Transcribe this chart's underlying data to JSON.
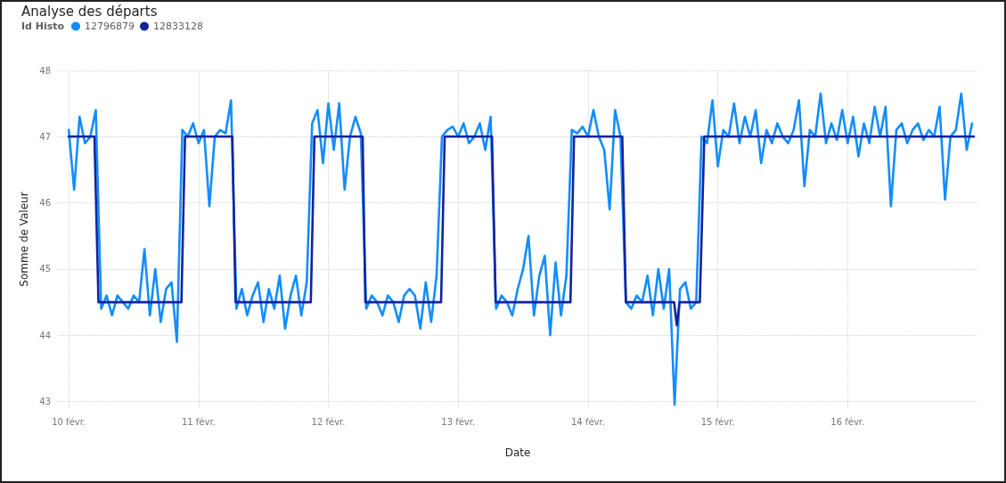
{
  "chart_data": {
    "type": "line",
    "title": "Analyse des départs",
    "legend_title": "Id Histo",
    "xlabel": "Date",
    "ylabel": "Somme de Valeur",
    "xlim": [
      "--02-09T22:00",
      "--02-17T00:00"
    ],
    "xticks": [
      {
        "value": "--02-10",
        "label": "10 févr."
      },
      {
        "value": "--02-11",
        "label": "11 févr."
      },
      {
        "value": "--02-12",
        "label": "12 févr."
      },
      {
        "value": "--02-13",
        "label": "13 févr."
      },
      {
        "value": "--02-14",
        "label": "14 févr."
      },
      {
        "value": "--02-15",
        "label": "15 févr."
      },
      {
        "value": "--02-16",
        "label": "16 févr."
      }
    ],
    "ylim": [
      42.9,
      48
    ],
    "yticks": [
      43,
      44,
      45,
      46,
      47,
      48
    ],
    "grid": true,
    "legend": "top left",
    "marker": "none",
    "line_style": "solid",
    "series": [
      {
        "name": "12796879",
        "color": "#118dff",
        "x": [
          "--02-10T00:00",
          "--02-10T01:00",
          "--02-10T02:00",
          "--02-10T03:00",
          "--02-10T04:00",
          "--02-10T05:00",
          "--02-10T06:00",
          "--02-10T07:00",
          "--02-10T08:00",
          "--02-10T09:00",
          "--02-10T10:00",
          "--02-10T11:00",
          "--02-10T12:00",
          "--02-10T13:00",
          "--02-10T14:00",
          "--02-10T15:00",
          "--02-10T16:00",
          "--02-10T17:00",
          "--02-10T18:00",
          "--02-10T19:00",
          "--02-10T20:00",
          "--02-10T21:00",
          "--02-10T22:00",
          "--02-10T23:00",
          "--02-11T00:00",
          "--02-11T01:00",
          "--02-11T02:00",
          "--02-11T03:00",
          "--02-11T04:00",
          "--02-11T05:00",
          "--02-11T06:00",
          "--02-11T07:00",
          "--02-11T08:00",
          "--02-11T09:00",
          "--02-11T10:00",
          "--02-11T11:00",
          "--02-11T12:00",
          "--02-11T13:00",
          "--02-11T14:00",
          "--02-11T15:00",
          "--02-11T16:00",
          "--02-11T17:00",
          "--02-11T18:00",
          "--02-11T19:00",
          "--02-11T20:00",
          "--02-11T21:00",
          "--02-11T22:00",
          "--02-11T23:00",
          "--02-12T00:00",
          "--02-12T01:00",
          "--02-12T02:00",
          "--02-12T03:00",
          "--02-12T04:00",
          "--02-12T05:00",
          "--02-12T06:00",
          "--02-12T07:00",
          "--02-12T08:00",
          "--02-12T09:00",
          "--02-12T10:00",
          "--02-12T11:00",
          "--02-12T12:00",
          "--02-12T13:00",
          "--02-12T14:00",
          "--02-12T15:00",
          "--02-12T16:00",
          "--02-12T17:00",
          "--02-12T18:00",
          "--02-12T19:00",
          "--02-12T20:00",
          "--02-12T21:00",
          "--02-12T22:00",
          "--02-12T23:00",
          "--02-13T00:00",
          "--02-13T01:00",
          "--02-13T02:00",
          "--02-13T03:00",
          "--02-13T04:00",
          "--02-13T05:00",
          "--02-13T06:00",
          "--02-13T07:00",
          "--02-13T08:00",
          "--02-13T09:00",
          "--02-13T10:00",
          "--02-13T11:00",
          "--02-13T12:00",
          "--02-13T13:00",
          "--02-13T14:00",
          "--02-13T15:00",
          "--02-13T16:00",
          "--02-13T17:00",
          "--02-13T18:00",
          "--02-13T19:00",
          "--02-13T20:00",
          "--02-13T21:00",
          "--02-13T22:00",
          "--02-13T23:00",
          "--02-14T00:00",
          "--02-14T01:00",
          "--02-14T02:00",
          "--02-14T03:00",
          "--02-14T04:00",
          "--02-14T05:00",
          "--02-14T06:00",
          "--02-14T07:00",
          "--02-14T08:00",
          "--02-14T09:00",
          "--02-14T10:00",
          "--02-14T11:00",
          "--02-14T12:00",
          "--02-14T13:00",
          "--02-14T14:00",
          "--02-14T15:00",
          "--02-14T16:00",
          "--02-14T17:00",
          "--02-14T18:00",
          "--02-14T19:00",
          "--02-14T20:00",
          "--02-14T21:00",
          "--02-14T22:00",
          "--02-14T23:00",
          "--02-15T00:00",
          "--02-15T01:00",
          "--02-15T02:00",
          "--02-15T03:00",
          "--02-15T04:00",
          "--02-15T05:00",
          "--02-15T06:00",
          "--02-15T07:00",
          "--02-15T08:00",
          "--02-15T09:00",
          "--02-15T10:00",
          "--02-15T11:00",
          "--02-15T12:00",
          "--02-15T13:00",
          "--02-15T14:00",
          "--02-15T15:00",
          "--02-15T16:00",
          "--02-15T17:00",
          "--02-15T18:00",
          "--02-15T19:00",
          "--02-15T20:00",
          "--02-15T21:00",
          "--02-15T22:00",
          "--02-15T23:00",
          "--02-16T00:00",
          "--02-16T01:00",
          "--02-16T02:00",
          "--02-16T03:00",
          "--02-16T04:00",
          "--02-16T05:00",
          "--02-16T06:00",
          "--02-16T07:00",
          "--02-16T08:00",
          "--02-16T09:00",
          "--02-16T10:00",
          "--02-16T11:00",
          "--02-16T12:00",
          "--02-16T13:00",
          "--02-16T14:00",
          "--02-16T15:00",
          "--02-16T16:00",
          "--02-16T17:00",
          "--02-16T18:00",
          "--02-16T19:00",
          "--02-16T20:00",
          "--02-16T21:00",
          "--02-16T22:00",
          "--02-16T23:00"
        ],
        "values": [
          47.1,
          46.2,
          47.3,
          46.9,
          47.0,
          47.4,
          44.4,
          44.6,
          44.3,
          44.6,
          44.5,
          44.4,
          44.6,
          44.5,
          45.3,
          44.3,
          45.0,
          44.2,
          44.7,
          44.8,
          43.9,
          47.1,
          47.0,
          47.2,
          46.9,
          47.1,
          45.95,
          47.0,
          47.1,
          47.05,
          47.55,
          44.4,
          44.7,
          44.3,
          44.6,
          44.8,
          44.2,
          44.7,
          44.4,
          44.9,
          44.1,
          44.6,
          44.9,
          44.3,
          44.8,
          47.2,
          47.4,
          46.6,
          47.5,
          46.8,
          47.5,
          46.2,
          47.0,
          47.3,
          47.05,
          44.4,
          44.6,
          44.5,
          44.3,
          44.6,
          44.5,
          44.2,
          44.6,
          44.7,
          44.6,
          44.1,
          44.8,
          44.2,
          44.9,
          47.0,
          47.1,
          47.15,
          47.0,
          47.2,
          46.9,
          47.0,
          47.2,
          46.8,
          47.3,
          44.4,
          44.6,
          44.5,
          44.3,
          44.7,
          45.0,
          45.5,
          44.3,
          44.9,
          45.2,
          44.0,
          45.1,
          44.3,
          44.9,
          47.1,
          47.05,
          47.15,
          47.0,
          47.4,
          47.0,
          46.8,
          45.9,
          47.4,
          47.0,
          44.5,
          44.4,
          44.6,
          44.5,
          44.9,
          44.3,
          45.0,
          44.4,
          45.0,
          42.95,
          44.7,
          44.8,
          44.4,
          44.5,
          47.0,
          46.9,
          47.55,
          46.55,
          47.1,
          47.0,
          47.5,
          46.9,
          47.3,
          47.0,
          47.4,
          46.6,
          47.1,
          46.9,
          47.2,
          47.0,
          46.9,
          47.1,
          47.55,
          46.25,
          47.1,
          47.0,
          47.65,
          46.9,
          47.2,
          46.95,
          47.4,
          46.9,
          47.3,
          46.7,
          47.2,
          46.9,
          47.45,
          47.0,
          47.45,
          45.95,
          47.1,
          47.2,
          46.9,
          47.1,
          47.2,
          46.95,
          47.1,
          47.0,
          47.45,
          46.05,
          47.0,
          47.1,
          47.65,
          46.8,
          47.2
        ]
      },
      {
        "name": "12833128",
        "color": "#12239e",
        "x": [
          "--02-10T00:00",
          "--02-10T04:45",
          "--02-10T05:30",
          "--02-10T20:50",
          "--02-10T21:30",
          "--02-11T06:15",
          "--02-11T06:50",
          "--02-11T20:45",
          "--02-11T21:25",
          "--02-12T06:20",
          "--02-12T06:50",
          "--02-12T20:50",
          "--02-12T21:30",
          "--02-13T06:15",
          "--02-13T06:55",
          "--02-13T20:45",
          "--02-13T21:25",
          "--02-14T06:20",
          "--02-14T07:00",
          "--02-14T15:55",
          "--02-14T16:25",
          "--02-14T16:55",
          "--02-14T20:40",
          "--02-14T21:30",
          "--02-16T23:20"
        ],
        "values": [
          47,
          47,
          44.5,
          44.5,
          47,
          47,
          44.5,
          44.5,
          47,
          47,
          44.5,
          44.5,
          47,
          47,
          44.5,
          44.5,
          47,
          47,
          44.5,
          44.5,
          44.15,
          44.5,
          44.5,
          47,
          47
        ]
      }
    ]
  }
}
